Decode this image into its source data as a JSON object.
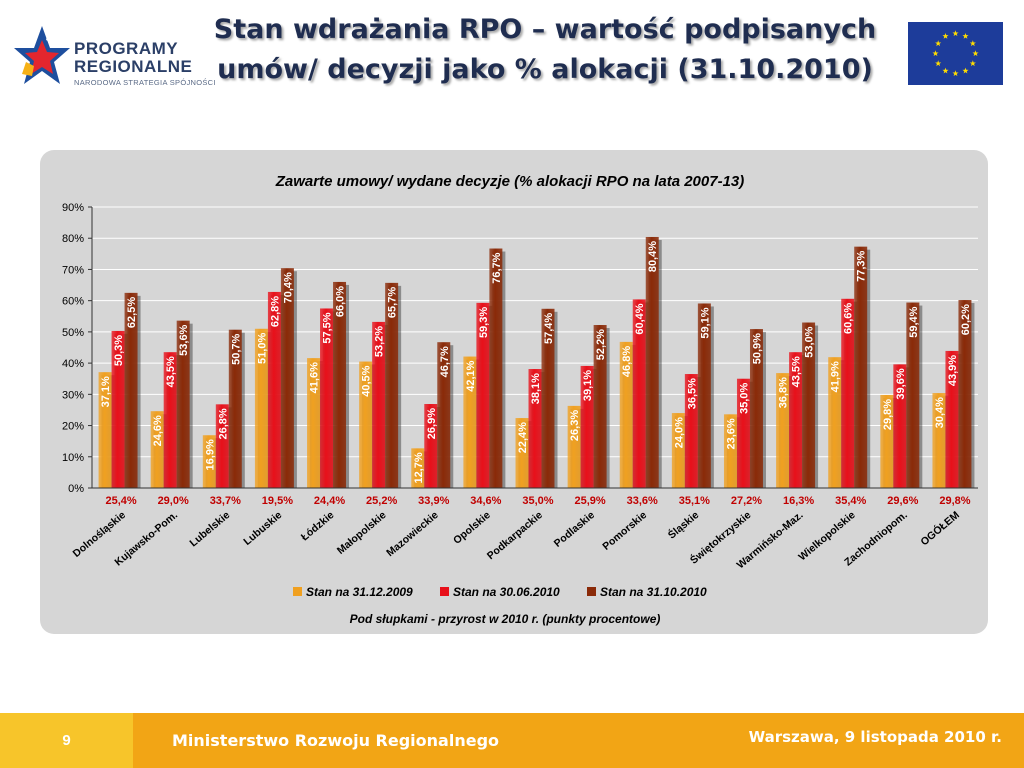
{
  "header": {
    "logo": {
      "line1": "PROGRAMY",
      "line2": "REGIONALNE",
      "line3": "NARODOWA STRATEGIA SPÓJNOŚCI"
    },
    "title_line1": "Stan wdrażania RPO – wartość podpisanych",
    "title_line2": "umów/ decyzji jako % alokacji (31.10.2010)"
  },
  "footer": {
    "page_number": "9",
    "organization": "Ministerstwo Rozwoju Regionalnego",
    "date": "Warszawa, 9 listopada 2010 r."
  },
  "colors": {
    "series": [
      "#f0a020",
      "#e8101a",
      "#8a2a08"
    ],
    "footer_bg": "#f2a515",
    "footer_num_bg": "#f7c52a",
    "chart_bg": "#d6d6d6",
    "growth_text": "#c00000"
  },
  "icons": [
    "programy-regionalne-logo-icon",
    "eu-flag-icon"
  ],
  "chart_data": {
    "type": "bar",
    "title": "Zawarte umowy/ wydane decyzje (% alokacji RPO na lata 2007-13)",
    "xlabel": "",
    "ylabel": "",
    "ylim": [
      0,
      90
    ],
    "yticks": [
      "0%",
      "10%",
      "20%",
      "30%",
      "40%",
      "50%",
      "60%",
      "70%",
      "80%",
      "90%"
    ],
    "grid": true,
    "legend_position": "bottom",
    "categories": [
      "Dolnośląskie",
      "Kujawsko-Pom.",
      "Lubelskie",
      "Lubuskie",
      "Łódzkie",
      "Małopolskie",
      "Mazowieckie",
      "Opolskie",
      "Podkarpackie",
      "Podlaskie",
      "Pomorskie",
      "Śląskie",
      "Świętokrzyskie",
      "Warmińsko-Maz.",
      "Wielkopolskie",
      "Zachodniopom.",
      "OGÓŁEM"
    ],
    "series": [
      {
        "name": "Stan na 31.12.2009",
        "values": [
          37.1,
          24.6,
          16.9,
          51.0,
          41.6,
          40.5,
          12.7,
          42.1,
          22.4,
          26.3,
          46.8,
          24.0,
          23.6,
          36.8,
          41.9,
          29.8,
          30.4
        ],
        "labels": [
          "37,1%",
          "24,6%",
          "16,9%",
          "51,0%",
          "41,6%",
          "40,5%",
          "12,7%",
          "42,1%",
          "22,4%",
          "26,3%",
          "46,8%",
          "24,0%",
          "23,6%",
          "36,8%",
          "41,9%",
          "29,8%",
          "30,4%"
        ]
      },
      {
        "name": "Stan na 30.06.2010",
        "values": [
          50.3,
          43.5,
          26.8,
          62.8,
          57.5,
          53.2,
          26.9,
          59.3,
          38.1,
          39.1,
          60.4,
          36.5,
          35.0,
          43.5,
          60.6,
          39.6,
          43.9
        ],
        "labels": [
          "50,3%",
          "43,5%",
          "26,8%",
          "62,8%",
          "57,5%",
          "53,2%",
          "26,9%",
          "59,3%",
          "38,1%",
          "39,1%",
          "60,4%",
          "36,5%",
          "35,0%",
          "43,5%",
          "60,6%",
          "39,6%",
          "43,9%"
        ]
      },
      {
        "name": "Stan na 31.10.2010",
        "values": [
          62.5,
          53.6,
          50.7,
          70.4,
          66.0,
          65.7,
          46.7,
          76.7,
          57.4,
          52.2,
          80.4,
          59.1,
          50.9,
          53.0,
          77.3,
          59.4,
          60.2
        ],
        "labels": [
          "62,5%",
          "53,6%",
          "50,7%",
          "70,4%",
          "66,0%",
          "65,7%",
          "46,7%",
          "76,7%",
          "57,4%",
          "52,2%",
          "80,4%",
          "59,1%",
          "50,9%",
          "53,0%",
          "77,3%",
          "59,4%",
          "60,2%"
        ]
      }
    ],
    "growth_labels": [
      "25,4%",
      "29,0%",
      "33,7%",
      "19,5%",
      "24,4%",
      "25,2%",
      "33,9%",
      "34,6%",
      "35,0%",
      "25,9%",
      "33,6%",
      "35,1%",
      "27,2%",
      "16,3%",
      "35,4%",
      "29,6%",
      "29,8%"
    ],
    "footnote": "Pod słupkami - przyrost w 2010 r. (punkty procentowe)"
  }
}
